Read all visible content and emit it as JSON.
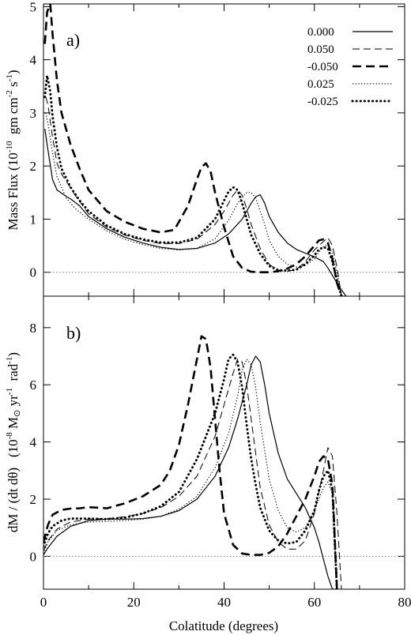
{
  "chart_data": [
    {
      "type": "line",
      "panel_label": "a)",
      "ylabel": "Mass Flux (10^-10 gm cm^-2 s^-1)",
      "ylabel_parts": {
        "pre": "Mass Flux (10",
        "exp1": "-10",
        "mid": "  gm cm",
        "exp2": "-2",
        "mid2": " s",
        "exp3": "-1",
        "post": ")"
      },
      "xlim": [
        0,
        80
      ],
      "ylim": [
        -0.45,
        5.05
      ],
      "yticks": [
        0,
        1,
        2,
        3,
        4,
        5
      ],
      "reference_line": 0,
      "legend_position": "top-right",
      "series": [
        {
          "name": "0.000",
          "style": "solid",
          "x": [
            0.3,
            1,
            2,
            3,
            5,
            6,
            8,
            10,
            14,
            18,
            22,
            26,
            30,
            34,
            38,
            41,
            44,
            46,
            47,
            48,
            49,
            50,
            52,
            54,
            56,
            58,
            60,
            62,
            63,
            64,
            65,
            66,
            67
          ],
          "y": [
            2.7,
            2.3,
            1.75,
            1.55,
            1.43,
            1.38,
            1.25,
            1.05,
            0.82,
            0.66,
            0.55,
            0.47,
            0.43,
            0.45,
            0.55,
            0.72,
            1.0,
            1.3,
            1.42,
            1.46,
            1.3,
            1.05,
            0.75,
            0.55,
            0.43,
            0.36,
            0.29,
            0.2,
            0.08,
            -0.06,
            -0.2,
            -0.33,
            -0.45
          ]
        },
        {
          "name": "0.050",
          "style": "dash-thin",
          "x": [
            0.5,
            1,
            2,
            3,
            4,
            5,
            7,
            10,
            14,
            18,
            22,
            26,
            30,
            34,
            38,
            40,
            42,
            43,
            44,
            45,
            46,
            48,
            50,
            52,
            54,
            56,
            58,
            60,
            62,
            63,
            64,
            65,
            66,
            67
          ],
          "y": [
            3.3,
            3.15,
            2.55,
            2.05,
            1.85,
            1.72,
            1.45,
            1.1,
            0.85,
            0.7,
            0.6,
            0.54,
            0.54,
            0.62,
            0.9,
            1.15,
            1.45,
            1.55,
            1.45,
            1.2,
            0.9,
            0.45,
            0.15,
            0.03,
            0.02,
            0.05,
            0.2,
            0.42,
            0.58,
            0.65,
            0.5,
            0.1,
            -0.45,
            -0.45
          ]
        },
        {
          "name": "-0.050",
          "style": "dash-thick",
          "x": [
            0.3,
            0.8,
            1.5,
            2,
            3,
            4,
            6,
            8,
            10,
            14,
            18,
            22,
            26,
            29,
            32,
            34,
            35,
            36,
            37,
            38,
            40,
            42,
            44,
            46,
            48,
            50,
            52,
            54,
            56,
            58,
            60,
            61,
            62,
            63,
            64,
            65,
            66
          ],
          "y": [
            4.3,
            4.9,
            5.05,
            4.5,
            3.6,
            3.0,
            2.4,
            1.95,
            1.55,
            1.15,
            0.95,
            0.82,
            0.75,
            0.8,
            1.25,
            1.75,
            1.98,
            2.05,
            1.9,
            1.5,
            0.85,
            0.3,
            0.08,
            0.01,
            0.0,
            0.0,
            0.02,
            0.07,
            0.15,
            0.3,
            0.5,
            0.6,
            0.62,
            0.55,
            0.25,
            -0.2,
            -0.45
          ]
        },
        {
          "name": "0.025",
          "style": "dot-thin",
          "x": [
            0.5,
            1,
            2,
            3,
            5,
            7,
            10,
            14,
            18,
            22,
            26,
            30,
            34,
            38,
            41,
            43,
            45,
            46,
            47,
            48,
            49,
            50,
            52,
            54,
            56,
            58,
            60,
            61,
            62,
            63,
            64,
            65,
            66
          ],
          "y": [
            3.0,
            2.8,
            2.25,
            1.8,
            1.4,
            1.2,
            1.0,
            0.78,
            0.62,
            0.52,
            0.45,
            0.42,
            0.45,
            0.63,
            0.98,
            1.3,
            1.5,
            1.5,
            1.4,
            1.15,
            0.9,
            0.6,
            0.3,
            0.15,
            0.1,
            0.13,
            0.25,
            0.38,
            0.48,
            0.52,
            0.35,
            0.0,
            -0.45
          ]
        },
        {
          "name": "-0.025",
          "style": "dot-thick",
          "x": [
            0.3,
            0.8,
            1.5,
            2,
            3,
            4,
            6,
            8,
            10,
            14,
            18,
            22,
            26,
            30,
            34,
            38,
            40,
            41,
            42,
            43,
            44,
            45,
            46,
            48,
            50,
            52,
            54,
            56,
            58,
            60,
            61,
            62,
            63,
            64,
            65,
            66
          ],
          "y": [
            3.3,
            3.7,
            3.4,
            2.95,
            2.35,
            1.95,
            1.6,
            1.35,
            1.15,
            0.88,
            0.72,
            0.62,
            0.56,
            0.56,
            0.65,
            1.0,
            1.35,
            1.52,
            1.6,
            1.55,
            1.3,
            1.0,
            0.7,
            0.35,
            0.12,
            0.04,
            0.03,
            0.05,
            0.15,
            0.32,
            0.43,
            0.47,
            0.45,
            0.2,
            -0.15,
            -0.45
          ]
        }
      ]
    },
    {
      "type": "line",
      "panel_label": "b)",
      "xlabel": "Colatitude (degrees)",
      "ylabel": "dM / (dt dθ)   (10^-8 M⊙ yr^-1  rad^-1)",
      "ylabel_parts": {
        "pre": "dM / (dt dθ)   (10",
        "exp1": "-8",
        "mid": " M",
        "sun": "⊙",
        "mid2": " yr",
        "exp2": "-1",
        "mid3": "  rad",
        "exp3": "-1",
        "post": ")"
      },
      "xlim": [
        0,
        80
      ],
      "ylim": [
        -1.15,
        9.1
      ],
      "xticks": [
        0,
        20,
        40,
        60,
        80
      ],
      "yticks": [
        0,
        2,
        4,
        6,
        8
      ],
      "reference_line": 0,
      "series": [
        {
          "name": "0.000",
          "style": "solid",
          "x": [
            0,
            1,
            3,
            6,
            10,
            14,
            18,
            22,
            26,
            30,
            34,
            38,
            41,
            43,
            45,
            46,
            47,
            48,
            49,
            50,
            52,
            54,
            56,
            58,
            60,
            61,
            62,
            63,
            64,
            65
          ],
          "y": [
            0.05,
            0.3,
            0.7,
            1.05,
            1.25,
            1.3,
            1.3,
            1.32,
            1.4,
            1.6,
            2.0,
            2.8,
            3.8,
            4.8,
            6.0,
            6.7,
            7.0,
            6.8,
            6.0,
            5.0,
            3.6,
            2.7,
            2.2,
            1.7,
            1.0,
            0.5,
            -0.1,
            -0.7,
            -1.15,
            -1.15
          ]
        },
        {
          "name": "0.050",
          "style": "dash-thin",
          "x": [
            0,
            1,
            3,
            6,
            10,
            14,
            18,
            22,
            26,
            30,
            34,
            38,
            40,
            42,
            43,
            44,
            45,
            46,
            47,
            48,
            50,
            52,
            54,
            56,
            58,
            60,
            62,
            63,
            64,
            65,
            66
          ],
          "y": [
            0.2,
            0.55,
            0.95,
            1.2,
            1.3,
            1.32,
            1.38,
            1.5,
            1.7,
            2.1,
            2.8,
            4.2,
            5.3,
            6.4,
            6.9,
            6.8,
            6.0,
            4.8,
            3.6,
            2.4,
            1.1,
            0.5,
            0.25,
            0.25,
            0.55,
            1.5,
            3.0,
            3.8,
            3.5,
            1.5,
            -1.15
          ]
        },
        {
          "name": "-0.050",
          "style": "dash-thick",
          "x": [
            0,
            1,
            2,
            4,
            6,
            8,
            10,
            12,
            14,
            18,
            22,
            26,
            28,
            30,
            32,
            34,
            35,
            36,
            37,
            38,
            39,
            40,
            42,
            44,
            46,
            48,
            50,
            52,
            54,
            56,
            58,
            60,
            61,
            62,
            63,
            64,
            65
          ],
          "y": [
            0.5,
            1.1,
            1.45,
            1.62,
            1.67,
            1.68,
            1.72,
            1.7,
            1.68,
            1.85,
            2.1,
            2.5,
            3.0,
            3.9,
            5.3,
            6.9,
            7.7,
            7.6,
            6.6,
            4.8,
            3.0,
            1.5,
            0.4,
            0.1,
            0.05,
            0.05,
            0.12,
            0.35,
            0.8,
            1.4,
            2.0,
            2.8,
            3.3,
            3.5,
            3.4,
            2.5,
            -1.15
          ]
        },
        {
          "name": "0.025",
          "style": "dot-thin",
          "x": [
            0,
            1,
            3,
            6,
            10,
            14,
            18,
            22,
            26,
            30,
            34,
            38,
            41,
            43,
            44,
            45,
            46,
            47,
            48,
            49,
            50,
            52,
            54,
            56,
            58,
            60,
            61,
            62,
            63,
            64,
            65
          ],
          "y": [
            0.1,
            0.5,
            0.9,
            1.1,
            1.2,
            1.22,
            1.25,
            1.3,
            1.4,
            1.65,
            2.1,
            3.1,
            4.3,
            5.6,
            6.5,
            6.9,
            6.7,
            5.9,
            4.7,
            3.7,
            2.7,
            1.6,
            1.0,
            0.85,
            1.0,
            1.6,
            2.0,
            2.4,
            2.6,
            2.2,
            -1.15
          ]
        },
        {
          "name": "-0.025",
          "style": "dot-thick",
          "x": [
            0,
            1,
            2,
            4,
            6,
            10,
            14,
            18,
            22,
            26,
            30,
            34,
            38,
            40,
            41,
            42,
            43,
            44,
            45,
            46,
            47,
            48,
            50,
            52,
            54,
            56,
            58,
            60,
            61,
            62,
            63,
            64,
            65
          ],
          "y": [
            0.35,
            0.8,
            1.05,
            1.25,
            1.32,
            1.32,
            1.3,
            1.35,
            1.5,
            1.75,
            2.25,
            3.4,
            5.0,
            6.2,
            6.9,
            7.05,
            6.8,
            5.9,
            4.6,
            3.4,
            2.5,
            1.7,
            0.9,
            0.55,
            0.45,
            0.5,
            0.9,
            1.6,
            2.3,
            2.8,
            3.0,
            2.3,
            -1.15
          ]
        }
      ]
    }
  ],
  "legend": {
    "entries": [
      "0.000",
      "0.050",
      "-0.050",
      "0.025",
      "-0.025"
    ]
  }
}
